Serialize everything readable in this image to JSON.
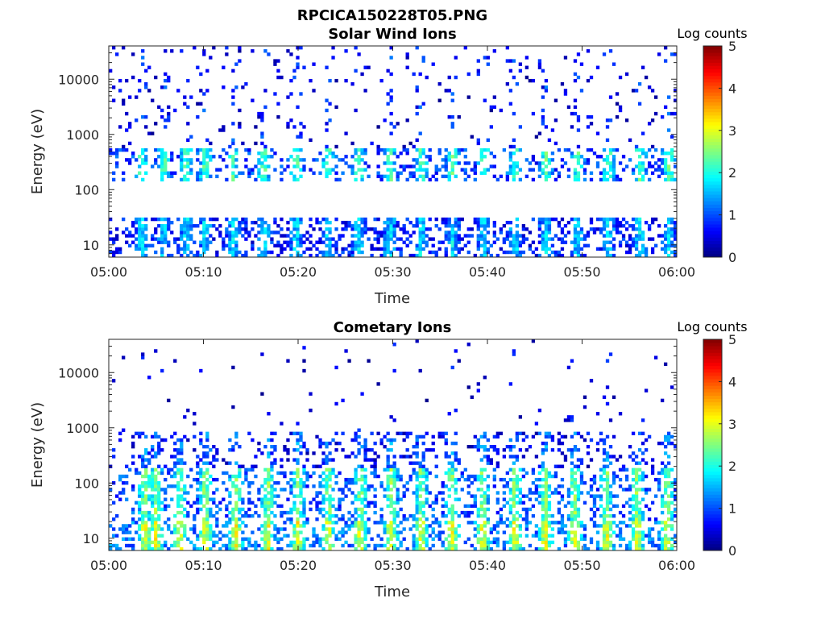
{
  "figure_title": "RPCICA150228T05.PNG",
  "colors": {
    "axes": "#262626",
    "background": "#ffffff"
  },
  "chart_data": [
    {
      "type": "heatmap",
      "title": "Solar Wind Ions",
      "xlabel": "Time",
      "ylabel": "Energy (eV)",
      "x_ticks": [
        "05:00",
        "05:10",
        "05:20",
        "05:30",
        "05:40",
        "05:50",
        "06:00"
      ],
      "x_range_minutes": [
        0,
        60
      ],
      "y_scale": "log",
      "y_ticks": [
        10,
        100,
        1000,
        10000
      ],
      "y_tick_labels": [
        "10",
        "100",
        "1000",
        "10000"
      ],
      "y_range": [
        6,
        40000
      ],
      "colorbar": {
        "label": "Log counts",
        "range": [
          0,
          5
        ],
        "ticks": [
          "0",
          "1",
          "2",
          "3",
          "4",
          "5"
        ],
        "colormap": "jet"
      },
      "sweep_times_minutes": [
        3.5,
        5.8,
        8.2,
        10.2,
        13.1,
        16.4,
        19.8,
        23.2,
        26.4,
        29.7,
        33.0,
        36.3,
        39.6,
        42.9,
        46.2,
        49.5,
        52.8,
        56.1,
        59.2
      ],
      "bands": [
        {
          "emin": 6,
          "emax": 30,
          "level": 1.2,
          "density": 0.85
        },
        {
          "emin": 150,
          "emax": 600,
          "level": 1.6,
          "density": 0.7
        },
        {
          "emin": 600,
          "emax": 40000,
          "level": 0.6,
          "density": 0.12
        }
      ]
    },
    {
      "type": "heatmap",
      "title": "Cometary Ions",
      "xlabel": "Time",
      "ylabel": "Energy (eV)",
      "x_ticks": [
        "05:00",
        "05:10",
        "05:20",
        "05:30",
        "05:40",
        "05:50",
        "06:00"
      ],
      "x_range_minutes": [
        0,
        60
      ],
      "y_scale": "log",
      "y_ticks": [
        10,
        100,
        1000,
        10000
      ],
      "y_tick_labels": [
        "10",
        "100",
        "1000",
        "10000"
      ],
      "y_range": [
        6,
        40000
      ],
      "colorbar": {
        "label": "Log counts",
        "range": [
          0,
          5
        ],
        "ticks": [
          "0",
          "1",
          "2",
          "3",
          "4",
          "5"
        ],
        "colormap": "jet"
      },
      "sweep_times_minutes": [
        3.8,
        5.0,
        7.5,
        10.2,
        13.4,
        16.8,
        20.0,
        23.2,
        26.6,
        29.8,
        33.0,
        36.2,
        39.5,
        42.9,
        46.1,
        49.2,
        52.6,
        55.8,
        59.0
      ],
      "bands": [
        {
          "emin": 6,
          "emax": 20,
          "level": 2.2,
          "density": 0.9
        },
        {
          "emin": 20,
          "emax": 200,
          "level": 1.8,
          "density": 0.75
        },
        {
          "emin": 200,
          "emax": 800,
          "level": 0.9,
          "density": 0.45
        },
        {
          "emin": 800,
          "emax": 40000,
          "level": 0.4,
          "density": 0.03
        }
      ]
    }
  ]
}
